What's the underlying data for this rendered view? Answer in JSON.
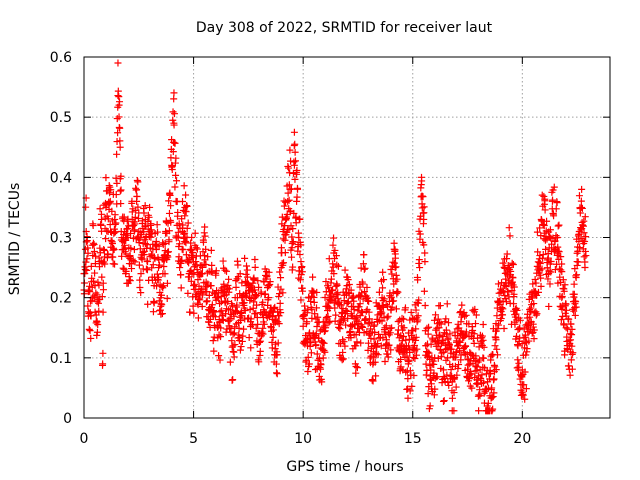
{
  "chart_data": {
    "type": "scatter",
    "title": "Day 308 of 2022, SRMTID for receiver laut",
    "xlabel": "GPS time / hours",
    "ylabel": "SRMTID / TECUs",
    "xlim": [
      0,
      24
    ],
    "ylim": [
      0,
      0.6
    ],
    "xticks": [
      0,
      5,
      10,
      15,
      20
    ],
    "xtick_labels": [
      "0",
      "5",
      "10",
      "15",
      "20"
    ],
    "yticks": [
      0,
      0.1,
      0.2,
      0.3,
      0.4,
      0.5,
      0.6
    ],
    "ytick_labels": [
      "0",
      "0.1",
      "0.2",
      "0.3",
      "0.4",
      "0.5",
      "0.6"
    ],
    "grid": true,
    "marker": "+",
    "color": "#ff0000",
    "series": [
      {
        "name": "SRMTID",
        "x_start": 0.0,
        "x_end": 22.9,
        "points": [
          [
            0.0,
            0.24
          ],
          [
            0.1,
            0.31
          ],
          [
            0.2,
            0.21
          ],
          [
            0.3,
            0.17
          ],
          [
            0.4,
            0.27
          ],
          [
            0.5,
            0.22
          ],
          [
            0.6,
            0.16
          ],
          [
            0.7,
            0.26
          ],
          [
            0.8,
            0.33
          ],
          [
            0.85,
            0.09
          ],
          [
            0.9,
            0.28
          ],
          [
            1.0,
            0.35
          ],
          [
            1.1,
            0.31
          ],
          [
            1.2,
            0.36
          ],
          [
            1.3,
            0.29
          ],
          [
            1.4,
            0.33
          ],
          [
            1.5,
            0.39
          ],
          [
            1.55,
            0.59
          ],
          [
            1.6,
            0.52
          ],
          [
            1.65,
            0.45
          ],
          [
            1.7,
            0.31
          ],
          [
            1.8,
            0.28
          ],
          [
            1.9,
            0.24
          ],
          [
            2.0,
            0.3
          ],
          [
            2.1,
            0.27
          ],
          [
            2.2,
            0.33
          ],
          [
            2.3,
            0.28
          ],
          [
            2.4,
            0.36
          ],
          [
            2.5,
            0.31
          ],
          [
            2.6,
            0.24
          ],
          [
            2.7,
            0.29
          ],
          [
            2.8,
            0.33
          ],
          [
            2.9,
            0.26
          ],
          [
            3.0,
            0.31
          ],
          [
            3.1,
            0.27
          ],
          [
            3.2,
            0.22
          ],
          [
            3.3,
            0.28
          ],
          [
            3.4,
            0.25
          ],
          [
            3.5,
            0.2
          ],
          [
            3.6,
            0.24
          ],
          [
            3.7,
            0.29
          ],
          [
            3.8,
            0.27
          ],
          [
            3.9,
            0.34
          ],
          [
            4.0,
            0.42
          ],
          [
            4.1,
            0.49
          ],
          [
            4.2,
            0.36
          ],
          [
            4.3,
            0.3
          ],
          [
            4.4,
            0.26
          ],
          [
            4.5,
            0.31
          ],
          [
            4.6,
            0.35
          ],
          [
            4.7,
            0.3
          ],
          [
            4.8,
            0.24
          ],
          [
            4.9,
            0.27
          ],
          [
            5.0,
            0.22
          ],
          [
            5.1,
            0.26
          ],
          [
            5.2,
            0.23
          ],
          [
            5.3,
            0.21
          ],
          [
            5.4,
            0.24
          ],
          [
            5.5,
            0.27
          ],
          [
            5.6,
            0.21
          ],
          [
            5.7,
            0.18
          ],
          [
            5.8,
            0.22
          ],
          [
            5.9,
            0.17
          ],
          [
            6.0,
            0.2
          ],
          [
            6.2,
            0.16
          ],
          [
            6.4,
            0.21
          ],
          [
            6.6,
            0.18
          ],
          [
            6.8,
            0.12
          ],
          [
            7.0,
            0.2
          ],
          [
            7.2,
            0.17
          ],
          [
            7.4,
            0.22
          ],
          [
            7.6,
            0.16
          ],
          [
            7.8,
            0.2
          ],
          [
            8.0,
            0.14
          ],
          [
            8.2,
            0.18
          ],
          [
            8.4,
            0.22
          ],
          [
            8.6,
            0.17
          ],
          [
            8.8,
            0.11
          ],
          [
            9.0,
            0.25
          ],
          [
            9.2,
            0.33
          ],
          [
            9.4,
            0.38
          ],
          [
            9.5,
            0.29
          ],
          [
            9.6,
            0.42
          ],
          [
            9.7,
            0.36
          ],
          [
            9.8,
            0.3
          ],
          [
            9.9,
            0.26
          ],
          [
            10.0,
            0.17
          ],
          [
            10.2,
            0.12
          ],
          [
            10.4,
            0.18
          ],
          [
            10.6,
            0.14
          ],
          [
            10.8,
            0.09
          ],
          [
            11.0,
            0.16
          ],
          [
            11.2,
            0.21
          ],
          [
            11.4,
            0.24
          ],
          [
            11.6,
            0.19
          ],
          [
            11.8,
            0.13
          ],
          [
            12.0,
            0.22
          ],
          [
            12.2,
            0.17
          ],
          [
            12.4,
            0.12
          ],
          [
            12.6,
            0.19
          ],
          [
            12.8,
            0.21
          ],
          [
            13.0,
            0.14
          ],
          [
            13.2,
            0.1
          ],
          [
            13.4,
            0.16
          ],
          [
            13.6,
            0.2
          ],
          [
            13.8,
            0.13
          ],
          [
            14.0,
            0.18
          ],
          [
            14.2,
            0.25
          ],
          [
            14.4,
            0.11
          ],
          [
            14.6,
            0.15
          ],
          [
            14.8,
            0.09
          ],
          [
            15.0,
            0.13
          ],
          [
            15.2,
            0.16
          ],
          [
            15.4,
            0.4
          ],
          [
            15.5,
            0.33
          ],
          [
            15.6,
            0.12
          ],
          [
            15.8,
            0.07
          ],
          [
            16.0,
            0.1
          ],
          [
            16.2,
            0.15
          ],
          [
            16.4,
            0.08
          ],
          [
            16.6,
            0.13
          ],
          [
            16.8,
            0.06
          ],
          [
            17.0,
            0.11
          ],
          [
            17.2,
            0.16
          ],
          [
            17.4,
            0.12
          ],
          [
            17.6,
            0.09
          ],
          [
            17.8,
            0.14
          ],
          [
            18.0,
            0.07
          ],
          [
            18.2,
            0.1
          ],
          [
            18.4,
            0.02
          ],
          [
            18.6,
            0.05
          ],
          [
            18.8,
            0.13
          ],
          [
            19.0,
            0.18
          ],
          [
            19.2,
            0.22
          ],
          [
            19.4,
            0.25
          ],
          [
            19.6,
            0.19
          ],
          [
            19.8,
            0.12
          ],
          [
            20.0,
            0.08
          ],
          [
            20.2,
            0.11
          ],
          [
            20.4,
            0.16
          ],
          [
            20.6,
            0.21
          ],
          [
            20.8,
            0.27
          ],
          [
            21.0,
            0.32
          ],
          [
            21.2,
            0.24
          ],
          [
            21.4,
            0.34
          ],
          [
            21.6,
            0.3
          ],
          [
            21.8,
            0.2
          ],
          [
            22.0,
            0.15
          ],
          [
            22.2,
            0.11
          ],
          [
            22.4,
            0.19
          ],
          [
            22.5,
            0.26
          ],
          [
            22.6,
            0.31
          ],
          [
            22.7,
            0.35
          ],
          [
            22.8,
            0.29
          ],
          [
            22.9,
            0.27
          ]
        ]
      }
    ]
  }
}
